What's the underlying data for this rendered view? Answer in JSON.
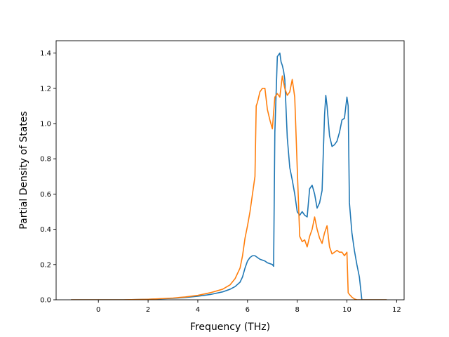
{
  "chart_data": {
    "type": "line",
    "title": "",
    "xlabel": "Frequency (THz)",
    "ylabel": "Partial Density of States",
    "xlim": [
      -1.7,
      12.3
    ],
    "ylim": [
      0,
      1.47
    ],
    "xticks": [
      0,
      2,
      4,
      6,
      8,
      10,
      12
    ],
    "yticks": [
      0.0,
      0.2,
      0.4,
      0.6,
      0.8,
      1.0,
      1.2,
      1.4
    ],
    "grid": false,
    "legend": "none",
    "series": [
      {
        "color": "#1f77b4",
        "x": [
          -1.1,
          0.0,
          1.0,
          2.0,
          3.0,
          3.5,
          4.0,
          4.5,
          5.0,
          5.3,
          5.5,
          5.7,
          5.8,
          5.9,
          6.0,
          6.1,
          6.2,
          6.3,
          6.5,
          6.7,
          6.8,
          7.0,
          7.05,
          7.1,
          7.2,
          7.3,
          7.35,
          7.4,
          7.45,
          7.5,
          7.6,
          7.7,
          7.8,
          7.9,
          8.0,
          8.1,
          8.2,
          8.3,
          8.4,
          8.5,
          8.6,
          8.7,
          8.8,
          8.9,
          9.0,
          9.1,
          9.15,
          9.2,
          9.3,
          9.4,
          9.5,
          9.6,
          9.7,
          9.8,
          9.9,
          10.0,
          10.05,
          10.1,
          10.2,
          10.3,
          10.4,
          10.5,
          10.6,
          11.6
        ],
        "y": [
          0.0,
          0.0,
          0.0,
          0.003,
          0.008,
          0.013,
          0.02,
          0.03,
          0.045,
          0.06,
          0.075,
          0.1,
          0.13,
          0.18,
          0.22,
          0.24,
          0.25,
          0.25,
          0.23,
          0.22,
          0.21,
          0.2,
          0.19,
          0.95,
          1.38,
          1.4,
          1.35,
          1.33,
          1.3,
          1.25,
          0.92,
          0.75,
          0.68,
          0.6,
          0.5,
          0.48,
          0.5,
          0.48,
          0.47,
          0.63,
          0.65,
          0.6,
          0.52,
          0.55,
          0.62,
          1.05,
          1.16,
          1.1,
          0.93,
          0.87,
          0.88,
          0.9,
          0.95,
          1.02,
          1.03,
          1.15,
          1.1,
          0.55,
          0.38,
          0.28,
          0.2,
          0.13,
          0.0,
          0.0
        ]
      },
      {
        "color": "#ff7f0e",
        "x": [
          -1.1,
          0.0,
          1.0,
          2.0,
          3.0,
          3.5,
          4.0,
          4.5,
          5.0,
          5.3,
          5.5,
          5.7,
          5.8,
          5.9,
          6.0,
          6.1,
          6.2,
          6.3,
          6.35,
          6.4,
          6.5,
          6.6,
          6.7,
          6.8,
          6.9,
          7.0,
          7.1,
          7.2,
          7.3,
          7.4,
          7.5,
          7.6,
          7.7,
          7.8,
          7.9,
          8.0,
          8.1,
          8.2,
          8.3,
          8.4,
          8.5,
          8.6,
          8.7,
          8.8,
          8.9,
          9.0,
          9.1,
          9.2,
          9.3,
          9.4,
          9.5,
          9.6,
          9.7,
          9.8,
          9.9,
          10.0,
          10.05,
          10.1,
          10.2,
          10.3,
          10.4,
          10.5,
          10.6,
          11.6
        ],
        "y": [
          0.0,
          0.0,
          0.0,
          0.003,
          0.01,
          0.016,
          0.025,
          0.04,
          0.06,
          0.085,
          0.12,
          0.18,
          0.25,
          0.35,
          0.42,
          0.5,
          0.6,
          0.7,
          1.1,
          1.12,
          1.18,
          1.2,
          1.2,
          1.08,
          1.02,
          0.97,
          1.15,
          1.17,
          1.15,
          1.27,
          1.2,
          1.16,
          1.18,
          1.25,
          1.15,
          0.75,
          0.36,
          0.33,
          0.34,
          0.3,
          0.36,
          0.4,
          0.47,
          0.4,
          0.35,
          0.32,
          0.38,
          0.42,
          0.3,
          0.26,
          0.27,
          0.28,
          0.27,
          0.27,
          0.25,
          0.27,
          0.04,
          0.03,
          0.015,
          0.005,
          0.0,
          0.0,
          0.0,
          0.0
        ]
      }
    ]
  }
}
